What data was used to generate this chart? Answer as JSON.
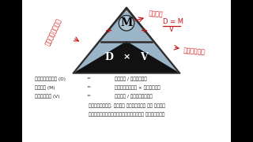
{
  "bg_color": "#ffffff",
  "black_bar_color": "#000000",
  "outer_tri_color": "#2d2d2d",
  "blue_color": "#9bb5c8",
  "black_tri_color": "#111111",
  "label_M": "M",
  "label_D": "D",
  "label_V": "V",
  "label_div": "÷",
  "label_times": "×",
  "red_color": "#cc1111",
  "text_color": "#222222",
  "annotation_top": "நிறை",
  "annotation_left": "அடர்த்தி",
  "annotation_right": "கணவளவு",
  "line1_a": "கடர்த்தி (D)",
  "line1_b": "=",
  "line1_c": "நிறை / கணவளவு",
  "line2_a": "நிறை (M)",
  "line2_b": "=",
  "line2_c": "கடர்த்தி × கணவளவு",
  "line3_a": "கணவளவு (V)",
  "line3_b": "=",
  "line3_c": "நிறை / கடர்த்தி",
  "line4": "கடர்த்தி, நிறை மற்றும் கண வளவு",
  "line5": "ஆகியவற்றுக்கிடையேமான தொடர்பு"
}
